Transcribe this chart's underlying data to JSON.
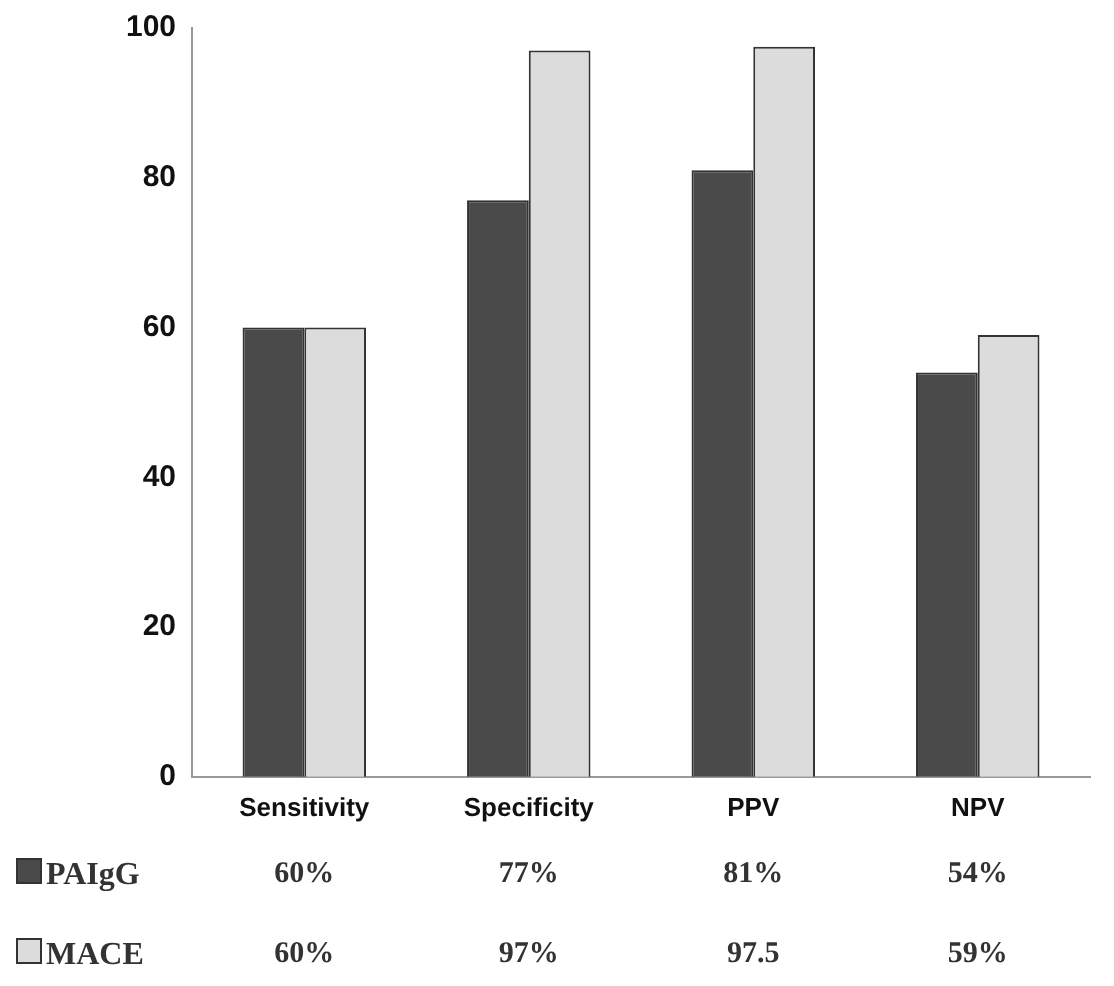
{
  "chart_data": {
    "type": "bar",
    "categories": [
      "Sensitivity",
      "Specificity",
      "PPV",
      "NPV"
    ],
    "series": [
      {
        "name": "PAIgG",
        "color": "#4a4a4a",
        "values": [
          60,
          77,
          81,
          54
        ],
        "value_labels": [
          "60%",
          "77%",
          "81%",
          "54%"
        ]
      },
      {
        "name": "MACE",
        "color": "#dcdcdc",
        "values": [
          60,
          97,
          97.5,
          59
        ],
        "value_labels": [
          "60%",
          "97%",
          "97.5",
          "59%"
        ]
      }
    ],
    "ylim": [
      0,
      100
    ],
    "yticks": [
      0,
      20,
      40,
      60,
      80,
      100
    ],
    "grid": false,
    "legend": "bottom left"
  }
}
